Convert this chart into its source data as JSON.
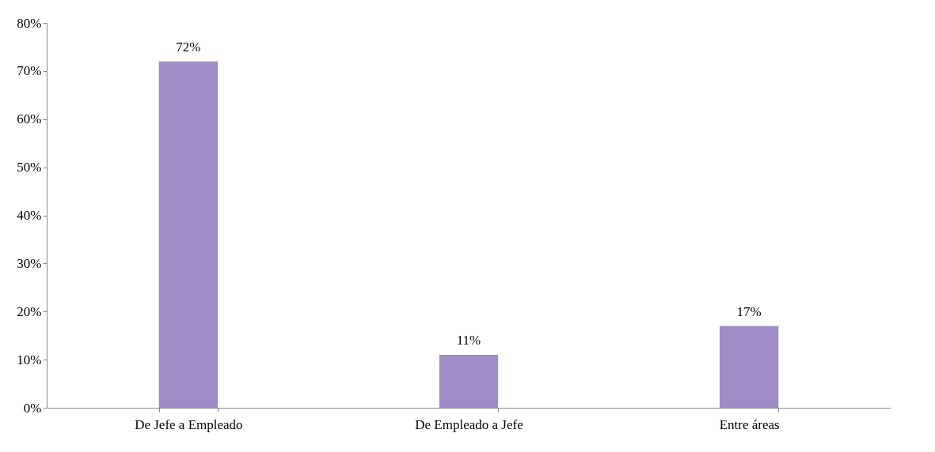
{
  "chart_data": {
    "type": "bar",
    "categories": [
      "De Jefe a Empleado",
      "De Empleado a Jefe",
      "Entre áreas"
    ],
    "values": [
      72,
      11,
      17
    ],
    "value_labels": [
      "72%",
      "11%",
      "17%"
    ],
    "color": "#a08cc6",
    "ylim": [
      0,
      80
    ],
    "yticks": [
      {
        "value": 0,
        "label": "0%"
      },
      {
        "value": 10,
        "label": "10%"
      },
      {
        "value": 20,
        "label": "20%"
      },
      {
        "value": 30,
        "label": "30%"
      },
      {
        "value": 40,
        "label": "40%"
      },
      {
        "value": 50,
        "label": "50%"
      },
      {
        "value": 60,
        "label": "60%"
      },
      {
        "value": 70,
        "label": "70%"
      },
      {
        "value": 80,
        "label": "80%"
      }
    ],
    "grid": false
  }
}
